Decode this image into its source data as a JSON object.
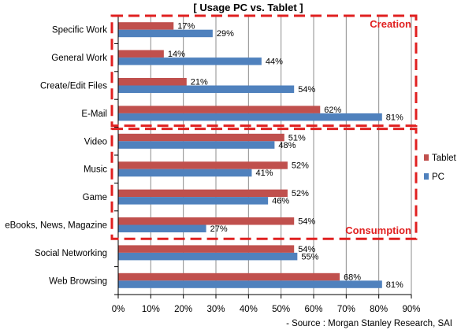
{
  "chart_data": {
    "type": "bar",
    "orientation": "horizontal",
    "title": "[ Usage  PC vs.  Tablet ]",
    "categories": [
      "Specific Work",
      "General Work",
      "Create/Edit Files",
      "E-Mail",
      "Video",
      "Music",
      "Game",
      "eBooks, News, Magazine",
      "Social Networking",
      "Web Browsing"
    ],
    "series": [
      {
        "name": "Tablet",
        "color": "#c0504d",
        "values": [
          17,
          14,
          21,
          62,
          51,
          52,
          52,
          54,
          54,
          68
        ]
      },
      {
        "name": "PC",
        "color": "#4f81bd",
        "values": [
          29,
          44,
          54,
          81,
          48,
          41,
          46,
          27,
          55,
          81
        ]
      }
    ],
    "value_format": "percent",
    "xlim": [
      0,
      90
    ],
    "xticks": [
      0,
      10,
      20,
      30,
      40,
      50,
      60,
      70,
      80,
      90
    ],
    "grid": true,
    "legend_position": "right",
    "groups": [
      {
        "label": "Creation",
        "categories": [
          "Specific Work",
          "General Work",
          "Create/Edit Files",
          "E-Mail"
        ],
        "color": "#e02020"
      },
      {
        "label": "Consumption",
        "categories": [
          "Video",
          "Music",
          "Game",
          "eBooks, News, Magazine"
        ],
        "color": "#e02020"
      }
    ],
    "source": "- Source :  Morgan  Stanley  Research,  SAI"
  }
}
